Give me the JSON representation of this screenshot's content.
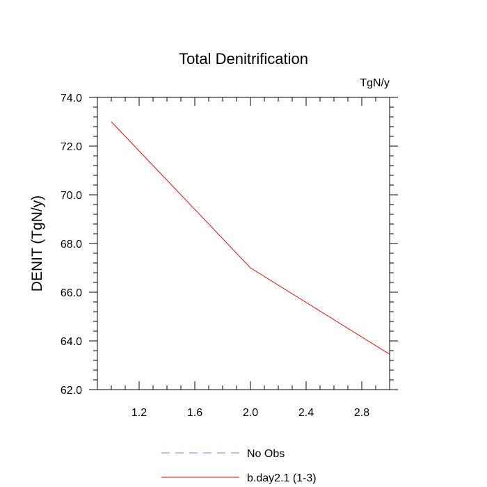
{
  "chart_data": {
    "type": "line",
    "title": "Total Denitrification",
    "units_label": "TgN/y",
    "xlabel": "",
    "ylabel": "DENIT  (TgN/y)",
    "xlim": [
      0.9,
      3.0
    ],
    "ylim": [
      62.0,
      74.0
    ],
    "x_ticks": [
      1.2,
      1.6,
      2.0,
      2.4,
      2.8
    ],
    "x_tick_labels": [
      "1.2",
      "1.6",
      "2.0",
      "2.4",
      "2.8"
    ],
    "y_ticks": [
      62.0,
      64.0,
      66.0,
      68.0,
      70.0,
      72.0,
      74.0
    ],
    "y_tick_labels": [
      "62.0",
      "64.0",
      "66.0",
      "68.0",
      "70.0",
      "72.0",
      "74.0"
    ],
    "series": [
      {
        "name": "b.day2.1 (1-3)",
        "color": "#ff0000",
        "dash": "solid",
        "x": [
          1.0,
          2.0,
          3.0
        ],
        "y": [
          73.0,
          67.0,
          63.45
        ]
      },
      {
        "name": "No Obs",
        "color": "#8080ff",
        "dash": "dashed",
        "x": [],
        "y": []
      }
    ],
    "legend": [
      "No Obs",
      "b.day2.1 (1-3)"
    ]
  }
}
